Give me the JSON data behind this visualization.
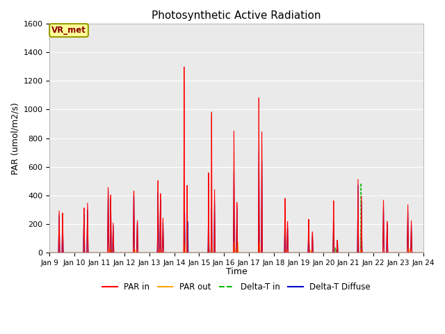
{
  "title": "Photosynthetic Active Radiation",
  "ylabel": "PAR (umol/m2/s)",
  "xlabel": "Time",
  "annotation": "VR_met",
  "ylim": [
    0,
    1600
  ],
  "yticks": [
    0,
    200,
    400,
    600,
    800,
    1000,
    1200,
    1400,
    1600
  ],
  "x_tick_labels": [
    "Jan 9",
    "Jan 10",
    "Jan 11",
    "Jan 12",
    "Jan 13",
    "Jan 14",
    "Jan 15",
    "Jan 16",
    "Jan 17",
    "Jan 18",
    "Jan 19",
    "Jan 20",
    "Jan 21",
    "Jan 22",
    "Jan 23",
    "Jan 24"
  ],
  "series_colors": {
    "PAR in": "#ff0000",
    "PAR out": "#ffa500",
    "Delta-T in": "#00bb00",
    "Delta-T Diffuse": "#0000cc"
  },
  "background_color": "#eaeaea",
  "grid_color": "#ffffff",
  "fig_bg": "#ffffff"
}
